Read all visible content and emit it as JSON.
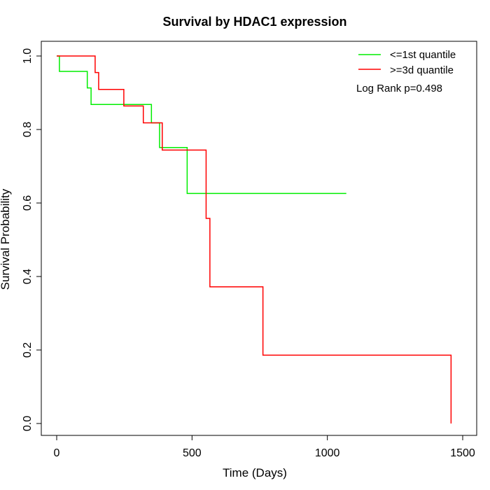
{
  "chart_data": {
    "type": "line",
    "step": true,
    "title": "Survival by HDAC1 expression",
    "xlabel": "Time (Days)",
    "ylabel": "Survival Probability",
    "xlim": [
      0,
      1500
    ],
    "ylim": [
      0,
      1
    ],
    "x_ticks": [
      0,
      500,
      1000,
      1500
    ],
    "y_ticks": [
      0.0,
      0.2,
      0.4,
      0.6,
      0.8,
      1.0
    ],
    "x_tick_labels": [
      "0",
      "500",
      "1000",
      "1500"
    ],
    "y_tick_labels": [
      "0.0",
      "0.2",
      "0.4",
      "0.6",
      "0.8",
      "1.0"
    ],
    "grid": false,
    "legend_position": "top-right",
    "annotation": "Log Rank p=0.498",
    "series": [
      {
        "name": "<=1st quantile",
        "color": "#00ee00",
        "points": [
          [
            0,
            1.0
          ],
          [
            10,
            0.958
          ],
          [
            113,
            0.913
          ],
          [
            127,
            0.868
          ],
          [
            350,
            0.818
          ],
          [
            380,
            0.751
          ],
          [
            482,
            0.626
          ],
          [
            1070,
            0.626
          ]
        ]
      },
      {
        "name": ">=3d quantile",
        "color": "#ff0000",
        "points": [
          [
            0,
            1.0
          ],
          [
            142,
            0.955
          ],
          [
            155,
            0.909
          ],
          [
            248,
            0.864
          ],
          [
            320,
            0.818
          ],
          [
            390,
            0.744
          ],
          [
            552,
            0.558
          ],
          [
            566,
            0.372
          ],
          [
            762,
            0.186
          ],
          [
            1457,
            0.0
          ]
        ]
      }
    ]
  }
}
